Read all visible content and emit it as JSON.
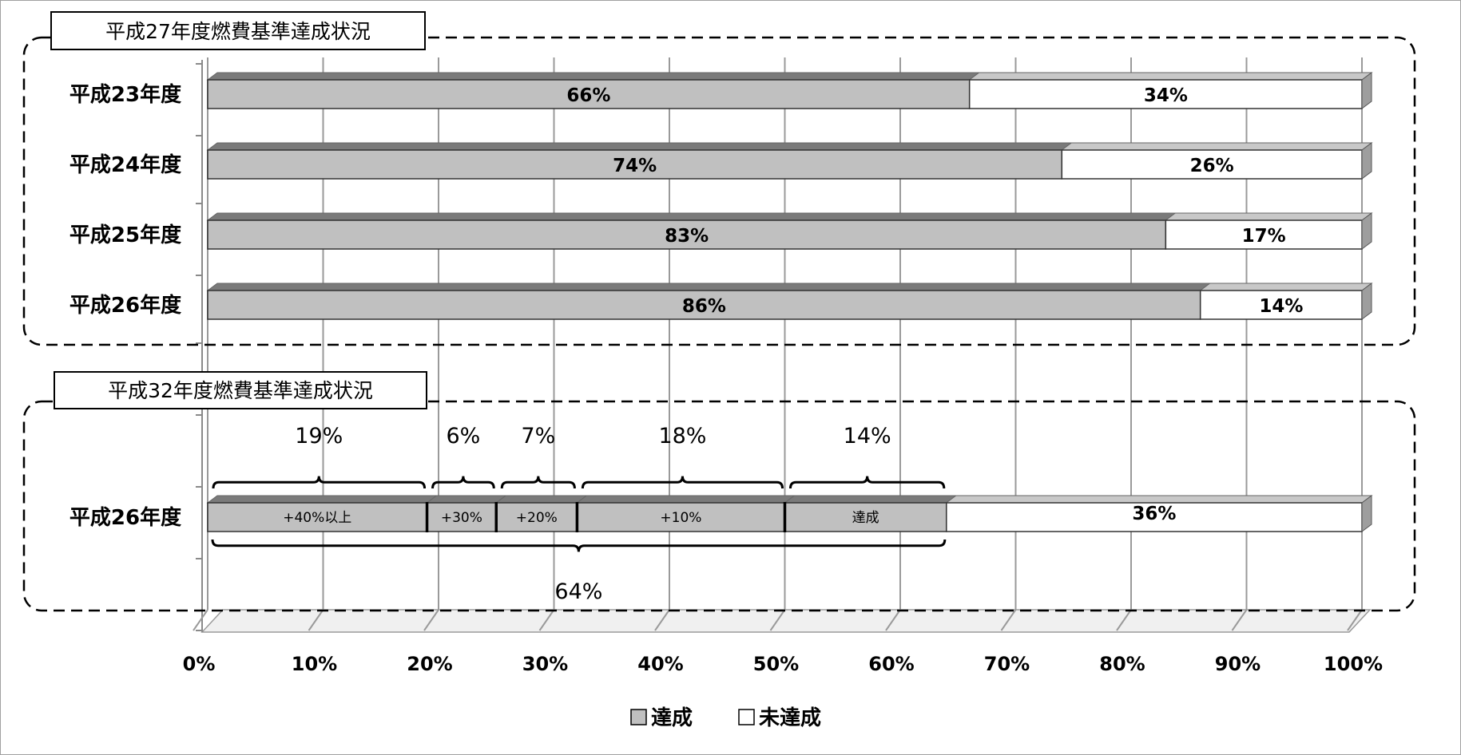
{
  "chart_data": {
    "type": "bar",
    "orientation": "horizontal",
    "stacked": true,
    "xlim": [
      0,
      100
    ],
    "xticks": [
      "0%",
      "10%",
      "20%",
      "30%",
      "40%",
      "50%",
      "60%",
      "70%",
      "80%",
      "90%",
      "100%"
    ],
    "grid": true,
    "legend": {
      "placement": "bottom",
      "items": [
        {
          "name": "達成",
          "color": "#c0c0c0"
        },
        {
          "name": "未達成",
          "color": "#ffffff"
        }
      ]
    },
    "panel_h27": {
      "title": "平成27年度燃費基準達成状況",
      "categories": [
        "平成23年度",
        "平成24年度",
        "平成25年度",
        "平成26年度"
      ],
      "series": [
        {
          "name": "達成",
          "values": [
            66,
            74,
            83,
            86
          ],
          "labels": [
            "66%",
            "74%",
            "83%",
            "86%"
          ]
        },
        {
          "name": "未達成",
          "values": [
            34,
            26,
            17,
            14
          ],
          "labels": [
            "34%",
            "26%",
            "17%",
            "14%"
          ]
        }
      ]
    },
    "panel_h32": {
      "title": "平成32年度燃費基準達成状況",
      "category": "平成26年度",
      "segments": [
        {
          "label": "+40%以上",
          "value": 19,
          "pct": "19%"
        },
        {
          "label": "+30%",
          "value": 6,
          "pct": "6%"
        },
        {
          "label": "+20%",
          "value": 7,
          "pct": "7%"
        },
        {
          "label": "+10%",
          "value": 18,
          "pct": "18%"
        },
        {
          "label": "達成",
          "value": 14,
          "pct": "14%"
        }
      ],
      "not_achieved": {
        "value": 36,
        "label": "36%"
      },
      "total_achieved": {
        "value": 64,
        "label": "64%"
      }
    }
  }
}
